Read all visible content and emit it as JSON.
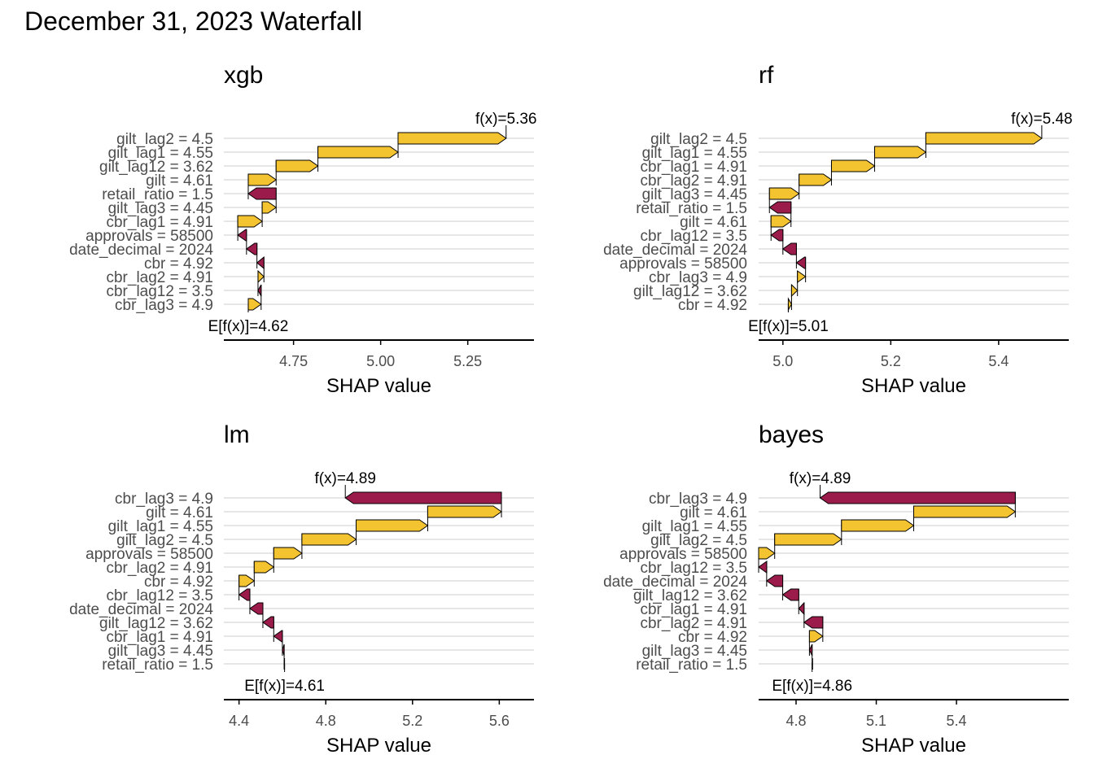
{
  "title": "December 31, 2023 Waterfall",
  "colors": {
    "positive": "#F4C430",
    "negative": "#9B1B4A",
    "grid": "#E6E6E6",
    "axis": "#000000"
  },
  "chart_data": [
    {
      "type": "waterfall",
      "title": "xgb",
      "xlabel": "SHAP value",
      "xlim": [
        4.55,
        5.44
      ],
      "xticks": [
        4.75,
        5.0,
        5.25
      ],
      "xtick_labels": [
        "4.75",
        "5.00",
        "5.25"
      ],
      "base_label": "E[f(x)]=4.62",
      "final_label": "f(x)=5.36",
      "base": 4.62,
      "features": [
        {
          "label": "gilt_lag2 = 4.5",
          "start": 5.05,
          "end": 5.36
        },
        {
          "label": "gilt_lag1 = 4.55",
          "start": 4.82,
          "end": 5.05
        },
        {
          "label": "gilt_lag12 = 3.62",
          "start": 4.7,
          "end": 4.82
        },
        {
          "label": "gilt = 4.61",
          "start": 4.62,
          "end": 4.7
        },
        {
          "label": "retail_ratio = 1.5",
          "start": 4.7,
          "end": 4.62
        },
        {
          "label": "gilt_lag3 = 4.45",
          "start": 4.66,
          "end": 4.7
        },
        {
          "label": "cbr_lag1 = 4.91",
          "start": 4.59,
          "end": 4.66
        },
        {
          "label": "approvals = 58500",
          "start": 4.615,
          "end": 4.59
        },
        {
          "label": "date_decimal = 2024",
          "start": 4.645,
          "end": 4.615
        },
        {
          "label": "cbr = 4.92",
          "start": 4.665,
          "end": 4.645
        },
        {
          "label": "cbr_lag2 = 4.91",
          "start": 4.648,
          "end": 4.665
        },
        {
          "label": "cbr_lag12 = 3.5",
          "start": 4.657,
          "end": 4.648
        },
        {
          "label": "cbr_lag3 = 4.9",
          "start": 4.62,
          "end": 4.657
        }
      ]
    },
    {
      "type": "waterfall",
      "title": "rf",
      "xlabel": "SHAP value",
      "xlim": [
        4.955,
        5.53
      ],
      "xticks": [
        5.0,
        5.2,
        5.4
      ],
      "xtick_labels": [
        "5.0",
        "5.2",
        "5.4"
      ],
      "base_label": "E[f(x)]=5.01",
      "final_label": "f(x)=5.48",
      "base": 5.01,
      "features": [
        {
          "label": "gilt_lag2 = 4.5",
          "start": 5.265,
          "end": 5.48
        },
        {
          "label": "gilt_lag1 = 4.55",
          "start": 5.17,
          "end": 5.265
        },
        {
          "label": "cbr_lag1 = 4.91",
          "start": 5.09,
          "end": 5.17
        },
        {
          "label": "cbr_lag2 = 4.91",
          "start": 5.03,
          "end": 5.09
        },
        {
          "label": "gilt_lag3 = 4.45",
          "start": 4.975,
          "end": 5.03
        },
        {
          "label": "retail_ratio = 1.5",
          "start": 5.015,
          "end": 4.975
        },
        {
          "label": "gilt = 4.61",
          "start": 4.978,
          "end": 5.015
        },
        {
          "label": "cbr_lag12 = 3.5",
          "start": 5.0,
          "end": 4.978
        },
        {
          "label": "date_decimal = 2024",
          "start": 5.025,
          "end": 5.0
        },
        {
          "label": "approvals = 58500",
          "start": 5.042,
          "end": 5.025
        },
        {
          "label": "cbr_lag3 = 4.9",
          "start": 5.027,
          "end": 5.042
        },
        {
          "label": "gilt_lag12 = 3.62",
          "start": 5.016,
          "end": 5.027
        },
        {
          "label": "cbr = 4.92",
          "start": 5.01,
          "end": 5.016
        }
      ]
    },
    {
      "type": "waterfall",
      "title": "lm",
      "xlabel": "SHAP value",
      "xlim": [
        4.33,
        5.76
      ],
      "xticks": [
        4.4,
        4.8,
        5.2,
        5.6
      ],
      "xtick_labels": [
        "4.4",
        "4.8",
        "5.2",
        "5.6"
      ],
      "base_label": "E[f(x)]=4.61",
      "final_label": "f(x)=4.89",
      "base": 4.61,
      "features": [
        {
          "label": "cbr_lag3 = 4.9",
          "start": 5.61,
          "end": 4.89
        },
        {
          "label": "gilt = 4.61",
          "start": 5.27,
          "end": 5.61
        },
        {
          "label": "gilt_lag1 = 4.55",
          "start": 4.94,
          "end": 5.27
        },
        {
          "label": "gilt_lag2 = 4.5",
          "start": 4.69,
          "end": 4.94
        },
        {
          "label": "approvals = 58500",
          "start": 4.56,
          "end": 4.69
        },
        {
          "label": "cbr_lag2 = 4.91",
          "start": 4.47,
          "end": 4.56
        },
        {
          "label": "cbr = 4.92",
          "start": 4.4,
          "end": 4.47
        },
        {
          "label": "cbr_lag12 = 3.5",
          "start": 4.45,
          "end": 4.4
        },
        {
          "label": "date_decimal = 2024",
          "start": 4.51,
          "end": 4.45
        },
        {
          "label": "gilt_lag12 = 3.62",
          "start": 4.56,
          "end": 4.51
        },
        {
          "label": "cbr_lag1 = 4.91",
          "start": 4.6,
          "end": 4.56
        },
        {
          "label": "gilt_lag3 = 4.45",
          "start": 4.608,
          "end": 4.6
        },
        {
          "label": "retail_ratio = 1.5",
          "start": 4.61,
          "end": 4.608
        }
      ]
    },
    {
      "type": "waterfall",
      "title": "bayes",
      "xlabel": "SHAP value",
      "xlim": [
        4.66,
        5.82
      ],
      "xticks": [
        4.8,
        5.1,
        5.4
      ],
      "xtick_labels": [
        "4.8",
        "5.1",
        "5.4"
      ],
      "base_label": "E[f(x)]=4.86",
      "final_label": "f(x)=4.89",
      "base": 4.86,
      "features": [
        {
          "label": "cbr_lag3 = 4.9",
          "start": 5.62,
          "end": 4.89
        },
        {
          "label": "gilt = 4.61",
          "start": 5.24,
          "end": 5.62
        },
        {
          "label": "gilt_lag1 = 4.55",
          "start": 4.97,
          "end": 5.24
        },
        {
          "label": "gilt_lag2 = 4.5",
          "start": 4.72,
          "end": 4.97
        },
        {
          "label": "approvals = 58500",
          "start": 4.66,
          "end": 4.72
        },
        {
          "label": "cbr_lag12 = 3.5",
          "start": 4.69,
          "end": 4.66
        },
        {
          "label": "date_decimal = 2024",
          "start": 4.75,
          "end": 4.69
        },
        {
          "label": "gilt_lag12 = 3.62",
          "start": 4.81,
          "end": 4.75
        },
        {
          "label": "cbr_lag1 = 4.91",
          "start": 4.83,
          "end": 4.81
        },
        {
          "label": "cbr_lag2 = 4.91",
          "start": 4.9,
          "end": 4.83
        },
        {
          "label": "cbr = 4.92",
          "start": 4.85,
          "end": 4.9
        },
        {
          "label": "gilt_lag3 = 4.45",
          "start": 4.86,
          "end": 4.85
        },
        {
          "label": "retail_ratio = 1.5",
          "start": 4.862,
          "end": 4.86
        }
      ]
    }
  ]
}
